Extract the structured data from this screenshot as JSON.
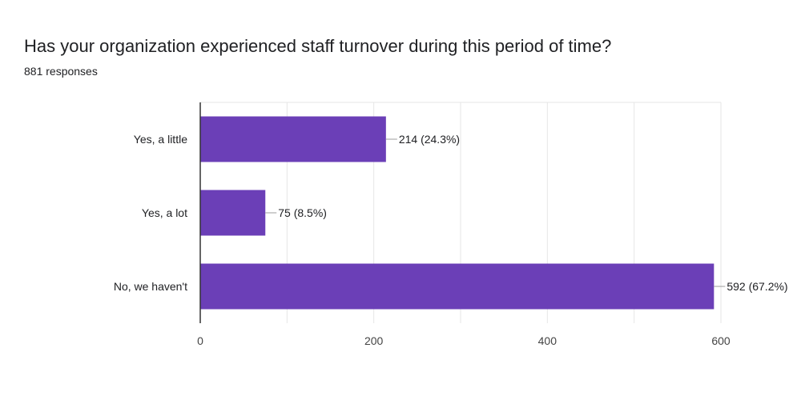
{
  "header": {
    "title": "Has your organization experienced staff turnover during this period of time?",
    "subtitle": "881 responses"
  },
  "colors": {
    "bar": "#6b3fb7",
    "grid": "#e6e6e6",
    "axis": "#333333",
    "leader": "#9e9e9e"
  },
  "chart_data": {
    "type": "bar",
    "orientation": "horizontal",
    "title": "Has your organization experienced staff turnover during this period of time?",
    "subtitle": "881 responses",
    "categories": [
      "Yes, a little",
      "Yes, a lot",
      "No, we haven't"
    ],
    "values": [
      214,
      75,
      592
    ],
    "data_labels": [
      "214 (24.3%)",
      "75 (8.5%)",
      "592 (67.2%)"
    ],
    "xlim": [
      0,
      600
    ],
    "x_ticks": [
      0,
      200,
      400,
      600
    ],
    "x_tick_labels": [
      "0",
      "200",
      "400",
      "600"
    ],
    "grid": true,
    "legend": "none"
  }
}
